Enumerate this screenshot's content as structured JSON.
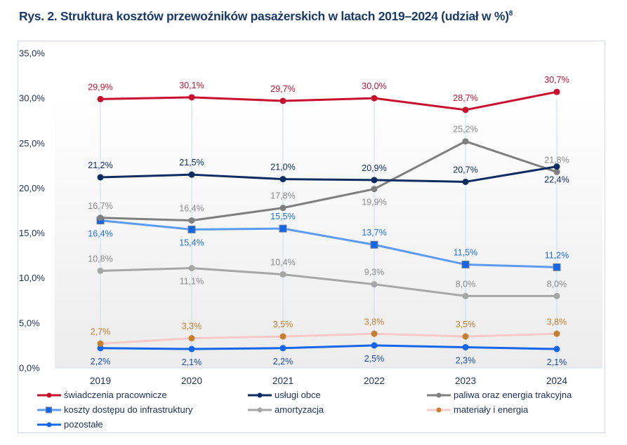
{
  "title": "Rys. 2. Struktura kosztów przewoźników pasażerskich w latach 2019–2024 (udział w %)",
  "title_footnote": "8",
  "chart_data": {
    "type": "line",
    "title": "Rys. 2. Struktura kosztów przewoźników pasażerskich w latach 2019–2024 (udział w %)",
    "xlabel": "",
    "ylabel": "",
    "categories": [
      "2019",
      "2020",
      "2021",
      "2022",
      "2023",
      "2024"
    ],
    "ylim": [
      0,
      35
    ],
    "yticks": [
      0,
      5,
      10,
      15,
      20,
      25,
      30,
      35
    ],
    "ytick_labels": [
      "0,0%",
      "5,0%",
      "10,0%",
      "15,0%",
      "20,0%",
      "25,0%",
      "30,0%",
      "35,0%"
    ],
    "grid": "vertical lines at categories",
    "legend_position": "bottom",
    "series": [
      {
        "name": "świadczenia pracownicze",
        "color": "#c8102e",
        "label_color": "#c8102e",
        "marker": "circle",
        "marker_color": "#c8102e",
        "values": [
          29.9,
          30.1,
          29.7,
          30.0,
          28.7,
          30.7
        ],
        "labels": [
          "29,9%",
          "30,1%",
          "29,7%",
          "30,0%",
          "28,7%",
          "30,7%"
        ],
        "label_pos": [
          "above",
          "above",
          "above",
          "above",
          "above",
          "above"
        ]
      },
      {
        "name": "usługi obce",
        "color": "#0d2d62",
        "label_color": "#0d2d62",
        "marker": "circle",
        "marker_color": "#0d2d62",
        "values": [
          21.2,
          21.5,
          21.0,
          20.9,
          20.7,
          22.4
        ],
        "labels": [
          "21,2%",
          "21,5%",
          "21,0%",
          "20,9%",
          "20,7%",
          "22,4%"
        ],
        "label_pos": [
          "above",
          "above",
          "above",
          "above",
          "above",
          "below"
        ]
      },
      {
        "name": "paliwa oraz energia trakcyjna",
        "color": "#7f7f7f",
        "label_color": "#8a8a8a",
        "marker": "circle",
        "marker_color": "#7f7f7f",
        "values": [
          16.7,
          16.4,
          17.8,
          19.9,
          25.2,
          21.8
        ],
        "labels": [
          "16,7%",
          "16,4%",
          "17,8%",
          "19,9%",
          "25,2%",
          "21,8%"
        ],
        "label_pos": [
          "above",
          "above",
          "above",
          "below",
          "above",
          "above"
        ]
      },
      {
        "name": "koszty dostępu do infrastruktury",
        "color": "#5b9bf5",
        "label_color": "#1f6fe0",
        "marker": "square",
        "marker_color": "#1565e8",
        "values": [
          16.4,
          15.4,
          15.5,
          13.7,
          11.5,
          11.2
        ],
        "labels": [
          "16,4%",
          "15,4%",
          "15,5%",
          "13,7%",
          "11,5%",
          "11,2%"
        ],
        "label_pos": [
          "below",
          "below",
          "above",
          "above",
          "above",
          "above"
        ]
      },
      {
        "name": "amortyzacja",
        "color": "#a6a6a6",
        "label_color": "#8a8a8a",
        "marker": "circle",
        "marker_color": "#a6a6a6",
        "values": [
          10.8,
          11.1,
          10.4,
          9.3,
          8.0,
          8.0
        ],
        "labels": [
          "10,8%",
          "11,1%",
          "10,4%",
          "9,3%",
          "8,0%",
          "8,0%"
        ],
        "label_pos": [
          "above",
          "below",
          "above",
          "above",
          "above",
          "above"
        ]
      },
      {
        "name": "materiały i energia",
        "color": "#f9c8c8",
        "label_color": "#c47f30",
        "marker": "circle",
        "marker_color": "#c47f30",
        "values": [
          2.7,
          3.3,
          3.5,
          3.8,
          3.5,
          3.8
        ],
        "labels": [
          "2,7%",
          "3,3%",
          "3,5%",
          "3,8%",
          "3,5%",
          "3,8%"
        ],
        "label_pos": [
          "above",
          "above",
          "above",
          "above",
          "above",
          "above"
        ]
      },
      {
        "name": "pozostałe",
        "color": "#1565e8",
        "label_color": "#1d4aa0",
        "marker": "circle",
        "marker_color": "#1565e8",
        "values": [
          2.2,
          2.1,
          2.2,
          2.5,
          2.3,
          2.1
        ],
        "labels": [
          "2,2%",
          "2,1%",
          "2,2%",
          "2,5%",
          "2,3%",
          "2,1%"
        ],
        "label_pos": [
          "below",
          "below",
          "below",
          "below",
          "below",
          "below"
        ]
      }
    ]
  },
  "legend": {
    "items": [
      {
        "label": "świadczenia pracownicze"
      },
      {
        "label": "usługi obce"
      },
      {
        "label": "paliwa oraz energia trakcyjna"
      },
      {
        "label": "koszty dostępu do infrastruktury"
      },
      {
        "label": "amortyzacja"
      },
      {
        "label": "materiały i energia"
      },
      {
        "label": "pozostałe"
      }
    ]
  }
}
